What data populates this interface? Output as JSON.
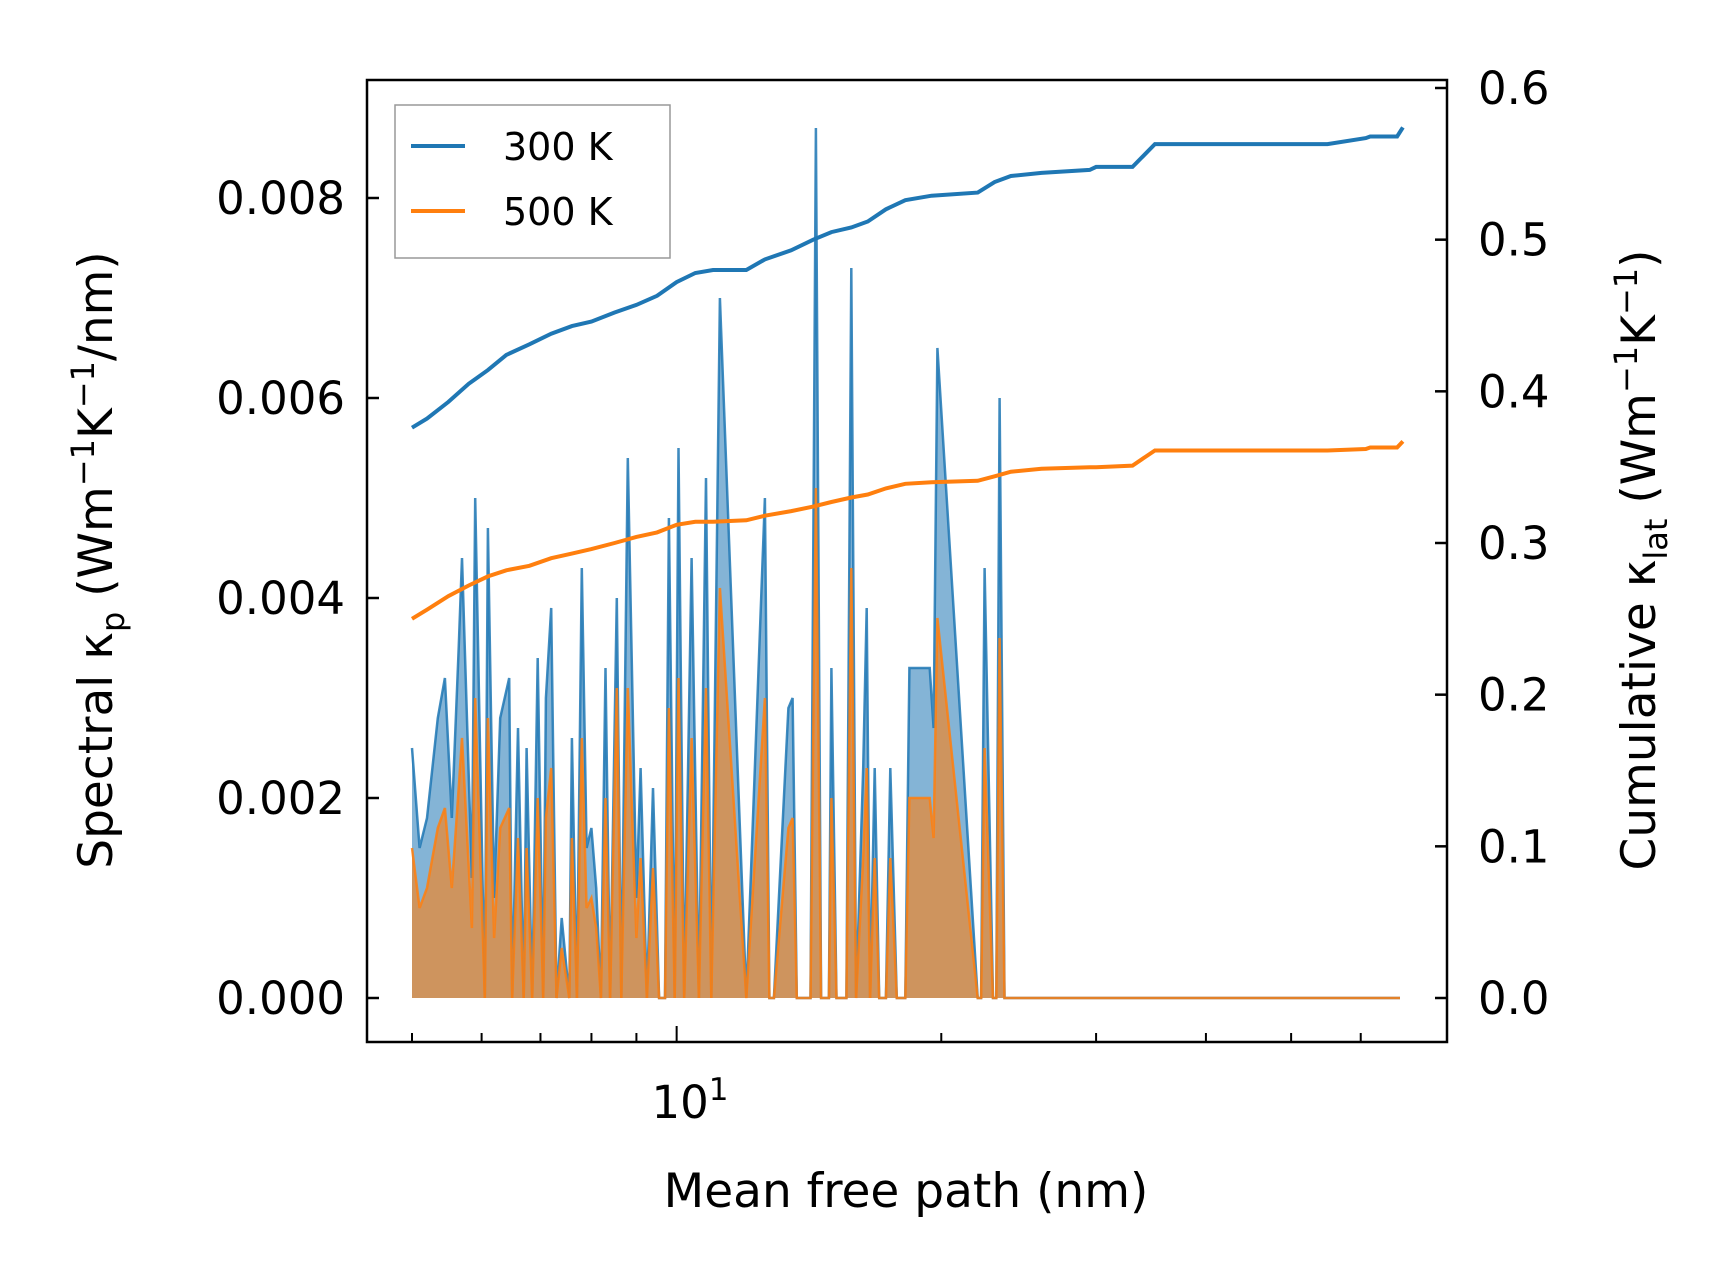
{
  "chart_data": {
    "type": "line",
    "xscale": "log",
    "xlabel": "Mean free path (nm)",
    "ylabel_left": {
      "main": "Spectral κ",
      "sub": "p",
      "unit_prefix": " (Wm",
      "exp1": "−1",
      "unit_mid": "K",
      "exp2": "−1",
      "unit_suffix": "/nm)"
    },
    "ylabel_right": {
      "main": "Cumulative κ",
      "sub": "lat",
      "unit_prefix": " (Wm",
      "exp1": "−1",
      "unit_mid": "K",
      "exp2": "−1",
      "unit_suffix": ")"
    },
    "x_tick_label": {
      "base": "10",
      "exp": "1"
    },
    "xlim": [
      4.9,
      67
    ],
    "ylim_left": [
      0,
      0.0092
    ],
    "ylim_right": [
      0,
      0.6
    ],
    "yticks_left": [
      "0.000",
      "0.002",
      "0.004",
      "0.006",
      "0.008"
    ],
    "yticks_right": [
      "0.0",
      "0.1",
      "0.2",
      "0.3",
      "0.4",
      "0.5",
      "0.6"
    ],
    "legend": {
      "position": "top-left",
      "entries": [
        "300 K",
        "500 K"
      ]
    },
    "colors": {
      "300K": "#1f77b4",
      "500K": "#ff7f0e"
    },
    "spectral_series": [
      {
        "name": "300 K",
        "x": [
          5.0,
          5.1,
          5.2,
          5.35,
          5.45,
          5.55,
          5.65,
          5.7,
          5.85,
          5.9,
          6.05,
          6.1,
          6.2,
          6.3,
          6.45,
          6.5,
          6.6,
          6.7,
          6.75,
          6.85,
          6.95,
          7.05,
          7.1,
          7.2,
          7.3,
          7.4,
          7.55,
          7.6,
          7.7,
          7.8,
          7.9,
          8.0,
          8.1,
          8.2,
          8.3,
          8.4,
          8.55,
          8.65,
          8.8,
          9.0,
          9.1,
          9.25,
          9.4,
          9.55,
          9.7,
          9.8,
          9.95,
          10.05,
          10.2,
          10.4,
          10.6,
          10.8,
          10.95,
          11.2,
          12.0,
          12.6,
          12.75,
          12.9,
          13.4,
          13.55,
          13.7,
          14.2,
          14.4,
          14.6,
          14.9,
          15.0,
          15.2,
          15.6,
          15.8,
          16.0,
          16.3,
          16.45,
          16.6,
          16.8,
          17.0,
          17.3,
          17.5,
          17.8,
          18.2,
          18.4,
          19.4,
          19.6,
          19.8,
          22.0,
          22.2,
          22.4,
          22.9,
          23.1,
          23.3,
          23.6,
          23.8,
          24.0,
          29.5,
          29.8,
          30.1,
          33.0,
          33.2,
          34.2,
          34.6,
          35.0,
          35.3,
          60.8,
          61.2,
          61.6,
          66.2,
          66.5
        ],
        "y": [
          0.0025,
          0.0015,
          0.0018,
          0.0028,
          0.0032,
          0.0018,
          0.0035,
          0.0044,
          0.0012,
          0.005,
          0.0,
          0.0047,
          0.001,
          0.0028,
          0.0032,
          0.0,
          0.0027,
          0.0,
          0.0025,
          0.0,
          0.0034,
          0.0,
          0.003,
          0.0039,
          0.0,
          0.0008,
          0.0,
          0.0026,
          0.0,
          0.0043,
          0.0015,
          0.0017,
          0.0011,
          0.0,
          0.0033,
          0.0,
          0.004,
          0.0,
          0.0054,
          0.001,
          0.0023,
          0.0,
          0.0021,
          0.0,
          0.0,
          0.0048,
          0.0,
          0.0055,
          0.0,
          0.0044,
          0.0,
          0.0052,
          0.0,
          0.007,
          0.0,
          0.005,
          0.0,
          0.0,
          0.0029,
          0.003,
          0.0,
          0.0,
          0.0087,
          0.0,
          0.0,
          0.0033,
          0.0,
          0.0,
          0.0073,
          0.0,
          0.0023,
          0.0039,
          0.0,
          0.0023,
          0.0,
          0.0,
          0.0023,
          0.0,
          0.0,
          0.0033,
          0.0033,
          0.0027,
          0.0065,
          0.0,
          0.0,
          0.0043,
          0.0,
          0.0,
          0.006,
          0.0,
          0.0,
          0.0,
          0.0,
          0.0,
          0.0,
          0.0,
          0.0,
          0.0,
          0.0,
          0.0,
          0.0,
          0.0,
          0.0,
          0.0,
          0.0,
          0.0
        ]
      },
      {
        "name": "500 K",
        "x": [
          5.0,
          5.1,
          5.2,
          5.35,
          5.45,
          5.55,
          5.65,
          5.7,
          5.85,
          5.9,
          6.05,
          6.1,
          6.2,
          6.3,
          6.45,
          6.5,
          6.6,
          6.7,
          6.75,
          6.85,
          6.95,
          7.05,
          7.1,
          7.2,
          7.3,
          7.4,
          7.55,
          7.6,
          7.7,
          7.8,
          7.9,
          8.0,
          8.1,
          8.2,
          8.3,
          8.4,
          8.55,
          8.65,
          8.8,
          9.0,
          9.1,
          9.25,
          9.4,
          9.55,
          9.7,
          9.8,
          9.95,
          10.05,
          10.2,
          10.4,
          10.6,
          10.8,
          10.95,
          11.2,
          12.0,
          12.6,
          12.75,
          12.9,
          13.4,
          13.55,
          13.7,
          14.2,
          14.4,
          14.6,
          14.9,
          15.0,
          15.2,
          15.6,
          15.8,
          16.0,
          16.3,
          16.45,
          16.6,
          16.8,
          17.0,
          17.3,
          17.5,
          17.8,
          18.2,
          18.4,
          19.4,
          19.6,
          19.8,
          22.0,
          22.2,
          22.4,
          22.9,
          23.1,
          23.3,
          23.6,
          23.8,
          24.0,
          29.5,
          29.8,
          30.1,
          33.0,
          33.2,
          34.2,
          34.6,
          35.0,
          35.3,
          60.8,
          61.2,
          61.6,
          66.2,
          66.5
        ],
        "y": [
          0.0015,
          0.0009,
          0.0011,
          0.0017,
          0.0019,
          0.0011,
          0.0021,
          0.0026,
          0.0007,
          0.003,
          0.0,
          0.0028,
          0.0006,
          0.0017,
          0.0019,
          0.0,
          0.0016,
          0.0,
          0.0015,
          0.0,
          0.002,
          0.0,
          0.0018,
          0.0023,
          0.0,
          0.0005,
          0.0,
          0.0016,
          0.0,
          0.0026,
          0.0009,
          0.001,
          0.0007,
          0.0,
          0.002,
          0.0,
          0.0031,
          0.0,
          0.0031,
          0.0006,
          0.0014,
          0.0,
          0.0013,
          0.0,
          0.0,
          0.0029,
          0.0,
          0.0032,
          0.0,
          0.0026,
          0.0,
          0.0031,
          0.0,
          0.0041,
          0.0,
          0.003,
          0.0,
          0.0,
          0.0017,
          0.0018,
          0.0,
          0.0,
          0.0051,
          0.0,
          0.0,
          0.002,
          0.0,
          0.0,
          0.0043,
          0.0,
          0.0014,
          0.0023,
          0.0,
          0.0014,
          0.0,
          0.0,
          0.0014,
          0.0,
          0.0,
          0.002,
          0.002,
          0.0016,
          0.0038,
          0.0,
          0.0,
          0.0025,
          0.0,
          0.0,
          0.0036,
          0.0,
          0.0,
          0.0,
          0.0,
          0.0,
          0.0,
          0.0,
          0.0,
          0.0,
          0.0,
          0.0,
          0.0,
          0.0,
          0.0,
          0.0,
          0.0,
          0.0
        ]
      }
    ],
    "cumulative_series": [
      {
        "name": "300 K",
        "x": [
          5.0,
          5.2,
          5.5,
          5.8,
          6.1,
          6.4,
          6.8,
          7.2,
          7.6,
          8.0,
          8.5,
          9.0,
          9.5,
          10.0,
          10.5,
          11.0,
          12.0,
          12.6,
          13.5,
          14.3,
          15.0,
          15.8,
          16.5,
          17.3,
          18.2,
          19.5,
          22.0,
          23.0,
          24.0,
          26.0,
          29.5,
          30.0,
          33.0,
          35.0,
          40.0,
          45.0,
          50.0,
          55.0,
          60.8,
          61.5,
          66.0,
          67.0
        ],
        "y": [
          0.376,
          0.382,
          0.393,
          0.405,
          0.414,
          0.424,
          0.431,
          0.438,
          0.443,
          0.446,
          0.452,
          0.457,
          0.463,
          0.472,
          0.478,
          0.48,
          0.48,
          0.487,
          0.493,
          0.5,
          0.505,
          0.508,
          0.512,
          0.52,
          0.526,
          0.529,
          0.531,
          0.538,
          0.542,
          0.544,
          0.546,
          0.548,
          0.548,
          0.563,
          0.563,
          0.563,
          0.563,
          0.563,
          0.567,
          0.568,
          0.568,
          0.574
        ]
      },
      {
        "name": "500 K",
        "x": [
          5.0,
          5.2,
          5.5,
          5.8,
          6.1,
          6.4,
          6.8,
          7.2,
          7.6,
          8.0,
          8.5,
          9.0,
          9.5,
          10.0,
          10.5,
          11.0,
          12.0,
          12.6,
          13.5,
          14.3,
          15.0,
          15.8,
          16.5,
          17.3,
          18.2,
          19.5,
          22.0,
          23.0,
          24.0,
          26.0,
          29.5,
          30.0,
          33.0,
          35.0,
          40.0,
          45.0,
          50.0,
          55.0,
          60.8,
          61.5,
          66.0,
          67.0
        ],
        "y": [
          0.25,
          0.256,
          0.265,
          0.272,
          0.278,
          0.282,
          0.285,
          0.29,
          0.293,
          0.296,
          0.3,
          0.304,
          0.307,
          0.312,
          0.314,
          0.314,
          0.315,
          0.318,
          0.321,
          0.324,
          0.327,
          0.33,
          0.332,
          0.336,
          0.339,
          0.34,
          0.341,
          0.344,
          0.347,
          0.349,
          0.35,
          0.35,
          0.351,
          0.361,
          0.361,
          0.361,
          0.361,
          0.361,
          0.362,
          0.363,
          0.363,
          0.367
        ]
      }
    ]
  }
}
